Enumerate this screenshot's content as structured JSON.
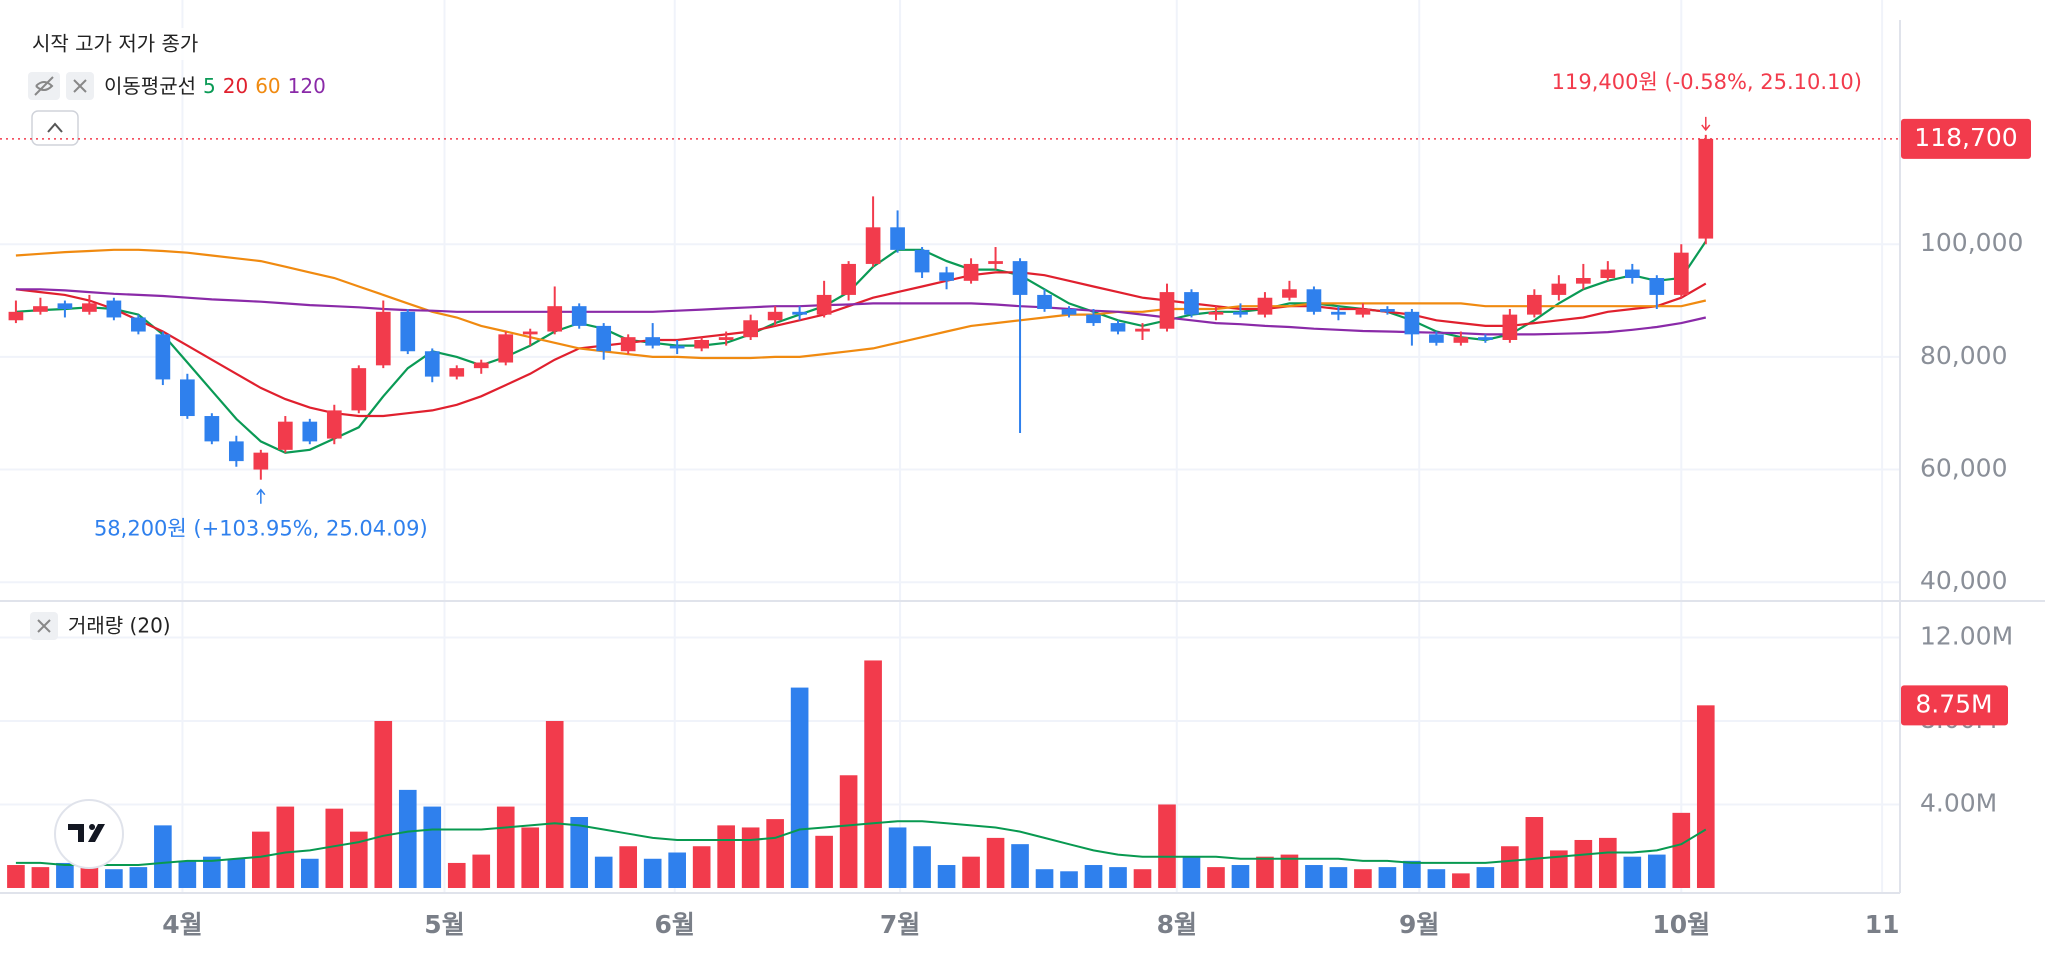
{
  "chart_data": {
    "type": "candlestick",
    "ohlc_legend": "시작 고가 저가 종가",
    "ma_title": "이동평균선",
    "volume_title": "거래량 (20)",
    "high_annotation": "119,400원 (-0.58%, 25.10.10)",
    "low_annotation": "58,200원 (+103.95%, 25.04.09)",
    "up_color": "#f23b4c",
    "down_color": "#2f80ed",
    "grid": true,
    "xlim": [
      -0.65,
      76.93
    ],
    "xticks": [
      {
        "value": 6.8,
        "label": "4월"
      },
      {
        "value": 17.5,
        "label": "5월"
      },
      {
        "value": 26.9,
        "label": "6월"
      },
      {
        "value": 36.1,
        "label": "7월"
      },
      {
        "value": 47.4,
        "label": "8월"
      },
      {
        "value": 57.3,
        "label": "9월"
      },
      {
        "value": 68.0,
        "label": "10월"
      },
      {
        "value": 76.2,
        "label": "11"
      }
    ],
    "ylim": [
      37200,
      139800
    ],
    "yticks": [
      {
        "value": 40000,
        "label": "40,000"
      },
      {
        "value": 60000,
        "label": "60,000"
      },
      {
        "value": 80000,
        "label": "80,000"
      },
      {
        "value": 100000,
        "label": "100,000"
      }
    ],
    "open": [
      86500,
      88000,
      89500,
      88000,
      90000,
      87000,
      84000,
      76000,
      69500,
      65000,
      60000,
      63500,
      68500,
      65500,
      70500,
      78500,
      88000,
      81000,
      76500,
      78000,
      79000,
      84000,
      84500,
      89000,
      85500,
      81000,
      83500,
      82000,
      81500,
      83000,
      83500,
      86500,
      88000,
      87500,
      91000,
      96500,
      103000,
      99000,
      95000,
      93500,
      96500,
      97000,
      91000,
      88500,
      87500,
      86000,
      84500,
      85000,
      91500,
      87500,
      88000,
      87500,
      90500,
      92000,
      88000,
      87500,
      88500,
      88000,
      84000,
      82500,
      83500,
      83000,
      87500,
      91000,
      93000,
      94000,
      95500,
      94000,
      91000,
      101000
    ],
    "high": [
      90000,
      90500,
      90000,
      91000,
      90500,
      87500,
      84500,
      77000,
      70000,
      66000,
      63500,
      69500,
      69000,
      71500,
      78500,
      90000,
      88500,
      81500,
      78500,
      79500,
      84500,
      85000,
      92500,
      89500,
      86000,
      84000,
      86000,
      83000,
      83500,
      84500,
      87500,
      89000,
      89000,
      93500,
      97000,
      108500,
      106000,
      99500,
      96000,
      97500,
      99500,
      97500,
      92000,
      89000,
      88500,
      86500,
      86000,
      93000,
      92000,
      89000,
      89500,
      91500,
      93500,
      92500,
      89000,
      89500,
      89000,
      88500,
      84500,
      84500,
      84000,
      88500,
      92000,
      94500,
      96500,
      97000,
      96500,
      94500,
      100000,
      119400
    ],
    "low": [
      86000,
      87500,
      87000,
      87500,
      86500,
      84000,
      75000,
      69000,
      64500,
      60500,
      58200,
      63000,
      64500,
      64500,
      70000,
      78000,
      80500,
      75500,
      76000,
      77000,
      78500,
      82000,
      84000,
      85000,
      79500,
      80500,
      81500,
      80500,
      81000,
      82000,
      83000,
      85500,
      86500,
      87000,
      90000,
      96000,
      98500,
      94000,
      92000,
      93000,
      95500,
      66500,
      88000,
      87000,
      85500,
      84000,
      83000,
      84500,
      87000,
      86500,
      87000,
      87000,
      90000,
      87500,
      86500,
      87000,
      87500,
      82000,
      82000,
      82000,
      82500,
      82500,
      87000,
      90000,
      92000,
      93500,
      93000,
      88500,
      90500,
      100000
    ],
    "close": [
      88000,
      89000,
      88500,
      89500,
      87000,
      84500,
      76000,
      69500,
      65000,
      61500,
      63000,
      68500,
      65000,
      70500,
      78000,
      88000,
      81000,
      76500,
      78000,
      79000,
      84000,
      84500,
      89000,
      85500,
      81000,
      83500,
      82000,
      81500,
      83000,
      83500,
      86500,
      88000,
      87500,
      91000,
      96500,
      103000,
      99000,
      95000,
      93500,
      96500,
      97000,
      91000,
      88500,
      87500,
      86000,
      84500,
      85000,
      91500,
      87500,
      88000,
      87500,
      90500,
      92000,
      88000,
      87500,
      88500,
      88000,
      84000,
      82500,
      83500,
      83000,
      87500,
      91000,
      93000,
      94000,
      95500,
      94000,
      91000,
      98500,
      118700
    ],
    "moving_averages": [
      {
        "name": "5",
        "color": "#0a9a55",
        "values": [
          88000,
          88300,
          88500,
          88800,
          88500,
          87500,
          84000,
          79000,
          74000,
          69000,
          65000,
          63000,
          63500,
          65500,
          67500,
          73000,
          78000,
          81000,
          80000,
          78500,
          80000,
          82000,
          84500,
          86000,
          85000,
          83000,
          82500,
          82000,
          82000,
          82500,
          84000,
          86000,
          87500,
          89000,
          91500,
          96000,
          99000,
          99000,
          97000,
          95500,
          95500,
          94500,
          92000,
          89500,
          88000,
          86500,
          85500,
          86500,
          87500,
          88000,
          88000,
          88500,
          89500,
          89500,
          89000,
          88500,
          88000,
          86500,
          84500,
          83500,
          83000,
          84000,
          86500,
          89500,
          92000,
          93500,
          94500,
          93500,
          94000,
          100500
        ]
      },
      {
        "name": "20",
        "color": "#e0202e",
        "values": [
          92000,
          91500,
          91000,
          90000,
          88500,
          86500,
          84500,
          82000,
          79500,
          77000,
          74500,
          72500,
          71000,
          70000,
          69500,
          69500,
          70000,
          70500,
          71500,
          73000,
          75000,
          77000,
          79500,
          81500,
          82000,
          82500,
          83000,
          83000,
          83500,
          84000,
          84500,
          85500,
          86500,
          87500,
          89000,
          90500,
          91500,
          92500,
          93500,
          94500,
          95000,
          95000,
          94500,
          93500,
          92500,
          91500,
          90500,
          90000,
          89500,
          89000,
          88500,
          88500,
          89000,
          89000,
          88500,
          88500,
          88000,
          87500,
          86500,
          86000,
          85500,
          85500,
          86000,
          86500,
          87000,
          88000,
          88500,
          89000,
          90500,
          93000
        ]
      },
      {
        "name": "60",
        "color": "#f08a10",
        "values": [
          98000,
          98300,
          98600,
          98800,
          99000,
          99000,
          98800,
          98500,
          98000,
          97500,
          97000,
          96000,
          95000,
          94000,
          92500,
          91000,
          89500,
          88000,
          87000,
          85500,
          84500,
          83500,
          82500,
          81500,
          81000,
          80500,
          80000,
          80000,
          79800,
          79800,
          79800,
          80000,
          80000,
          80500,
          81000,
          81500,
          82500,
          83500,
          84500,
          85500,
          86000,
          86500,
          87000,
          87500,
          87500,
          88000,
          88000,
          88500,
          88500,
          88500,
          89000,
          89000,
          89000,
          89500,
          89500,
          89500,
          89500,
          89500,
          89500,
          89500,
          89000,
          89000,
          89000,
          89000,
          89000,
          89000,
          89000,
          89000,
          89000,
          90000
        ]
      },
      {
        "name": "120",
        "color": "#8a2aa8",
        "values": [
          92000,
          92000,
          91800,
          91500,
          91200,
          91000,
          90800,
          90500,
          90200,
          90000,
          89800,
          89500,
          89200,
          89000,
          88800,
          88500,
          88300,
          88200,
          88000,
          88000,
          88000,
          88000,
          88000,
          88000,
          88000,
          88000,
          88000,
          88200,
          88400,
          88600,
          88800,
          89000,
          89000,
          89200,
          89300,
          89500,
          89500,
          89500,
          89500,
          89500,
          89300,
          89000,
          88800,
          88500,
          88200,
          88000,
          87500,
          87000,
          86500,
          86000,
          85800,
          85500,
          85300,
          85000,
          84800,
          84600,
          84500,
          84400,
          84300,
          84200,
          84000,
          84000,
          84000,
          84100,
          84200,
          84400,
          84800,
          85300,
          86000,
          87000
        ]
      }
    ],
    "last_price": {
      "value": 118700,
      "label": "118,700"
    },
    "volume": {
      "ylim": [
        -240000,
        13700000
      ],
      "yticks": [
        {
          "value": 4000000,
          "label": "4.00M"
        },
        {
          "value": 8000000,
          "label": "8.00M"
        },
        {
          "value": 12000000,
          "label": "12.00M"
        }
      ],
      "values": [
        1100000,
        1000000,
        1200000,
        1100000,
        900000,
        1000000,
        3000000,
        1300000,
        1500000,
        1400000,
        2700000,
        3900000,
        1400000,
        3800000,
        2700000,
        8000000,
        4700000,
        3900000,
        1200000,
        1600000,
        3900000,
        2900000,
        8000000,
        3400000,
        1500000,
        2000000,
        1400000,
        1700000,
        2000000,
        3000000,
        2900000,
        3300000,
        9600000,
        2500000,
        5400000,
        10900000,
        2900000,
        2000000,
        1100000,
        1500000,
        2400000,
        2100000,
        900000,
        800000,
        1100000,
        1000000,
        900000,
        4000000,
        1500000,
        1000000,
        1100000,
        1500000,
        1600000,
        1100000,
        1000000,
        900000,
        1000000,
        1300000,
        900000,
        700000,
        1000000,
        2000000,
        3400000,
        1800000,
        2300000,
        2400000,
        1500000,
        1600000,
        3600000,
        8750000
      ],
      "ma": {
        "color": "#089950",
        "values": [
          1200000,
          1200000,
          1100000,
          1100000,
          1100000,
          1100000,
          1200000,
          1300000,
          1300000,
          1400000,
          1500000,
          1700000,
          1800000,
          2000000,
          2200000,
          2500000,
          2700000,
          2800000,
          2800000,
          2800000,
          2900000,
          3000000,
          3100000,
          3000000,
          2800000,
          2600000,
          2400000,
          2300000,
          2300000,
          2300000,
          2300000,
          2400000,
          2800000,
          2900000,
          3000000,
          3100000,
          3200000,
          3200000,
          3100000,
          3000000,
          2900000,
          2700000,
          2400000,
          2100000,
          1800000,
          1600000,
          1500000,
          1500000,
          1500000,
          1500000,
          1400000,
          1400000,
          1400000,
          1400000,
          1400000,
          1300000,
          1300000,
          1200000,
          1200000,
          1200000,
          1200000,
          1300000,
          1400000,
          1500000,
          1600000,
          1700000,
          1700000,
          1800000,
          2100000,
          2800000
        ]
      },
      "last": {
        "value": 8750000,
        "label": "8.75M"
      }
    }
  }
}
